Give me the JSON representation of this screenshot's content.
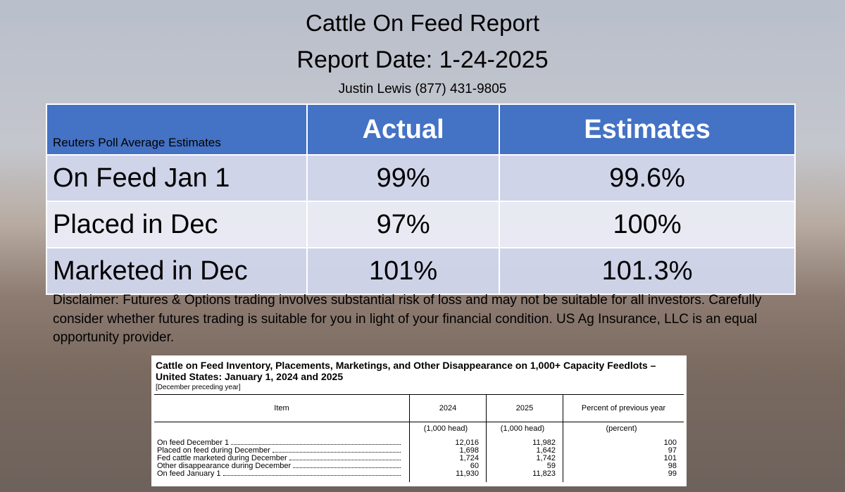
{
  "header": {
    "title": "Cattle On Feed Report",
    "report_date": "Report Date: 1-24-2025",
    "contact": "Justin Lewis (877) 431-9805"
  },
  "table": {
    "header": [
      "Reuters Poll Average Estimates",
      "Actual",
      "Estimates"
    ],
    "rows": [
      [
        "On Feed Jan 1",
        "99%",
        "99.6%"
      ],
      [
        "Placed in Dec",
        "97%",
        "100%"
      ],
      [
        "Marketed in Dec",
        "101%",
        "101.3%"
      ]
    ]
  },
  "disclaimer": "Disclaimer:  Futures & Options trading involves substantial risk of loss and may not be suitable for all investors.  Carefully consider whether futures trading is suitable for you in light of your financial condition.  US Ag Insurance, LLC is an equal opportunity provider.",
  "usda": {
    "title": "Cattle on Feed Inventory, Placements, Marketings, and Other Disappearance on 1,000+ Capacity Feedlots – United States: January 1, 2024 and 2025",
    "note": "[December preceding year]",
    "columns": [
      "Item",
      "2024",
      "2025",
      "Percent of previous year"
    ],
    "units": [
      "(1,000 head)",
      "(1,000 head)",
      "(percent)"
    ],
    "rows": [
      [
        "On feed December 1",
        "12,016",
        "11,982",
        "100"
      ],
      [
        "Placed on feed during December",
        "1,698",
        "1,642",
        "97"
      ],
      [
        "Fed cattle marketed during December",
        "1,724",
        "1,742",
        "101"
      ],
      [
        "Other disappearance during December",
        "60",
        "59",
        "98"
      ],
      [
        "On feed January 1",
        "11,930",
        "11,823",
        "99"
      ]
    ]
  }
}
